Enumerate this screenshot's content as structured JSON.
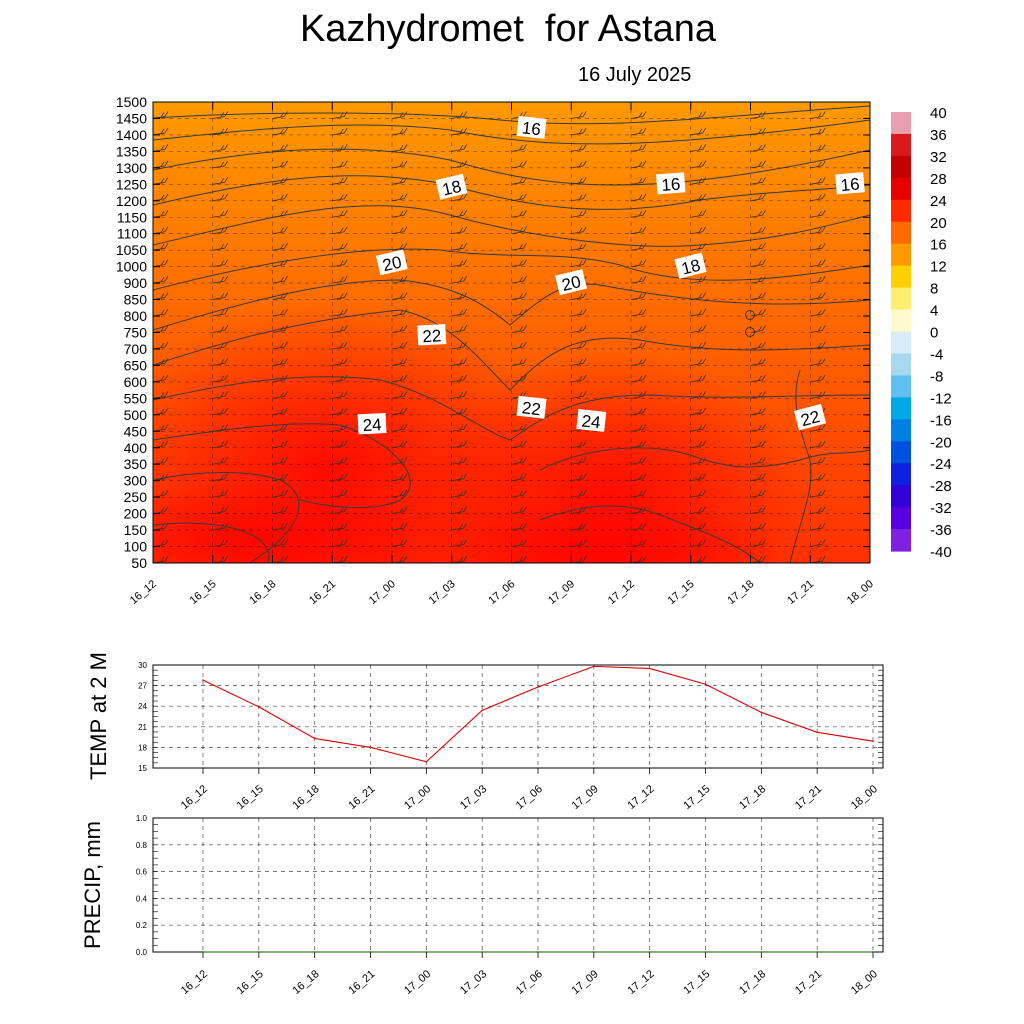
{
  "header": {
    "title": "Kazhydromet  for Astana",
    "date": "16 July 2025"
  },
  "colors": {
    "temp_line": "#e00000",
    "precip_line": "#006400",
    "contour": "#333333",
    "grid": "#000000"
  },
  "chart_data": [
    {
      "type": "heatmap",
      "title": "",
      "x_categories": [
        "16_12",
        "16_15",
        "16_18",
        "16_21",
        "17_00",
        "17_03",
        "17_06",
        "17_09",
        "17_12",
        "17_15",
        "17_18",
        "17_21",
        "18_00"
      ],
      "y_levels": [
        50,
        100,
        150,
        200,
        250,
        300,
        350,
        400,
        450,
        500,
        550,
        600,
        650,
        700,
        750,
        800,
        850,
        900,
        1000,
        1050,
        1100,
        1150,
        1200,
        1250,
        1300,
        1350,
        1400,
        1450,
        1500
      ],
      "colorbar": {
        "ticks": [
          40,
          36,
          32,
          28,
          24,
          20,
          16,
          12,
          8,
          4,
          0,
          -4,
          -8,
          -12,
          -16,
          -20,
          -24,
          -28,
          -32,
          -36,
          -40
        ],
        "range": [
          -40,
          40
        ]
      },
      "contour_labels": [
        {
          "value": "16",
          "x": "17_07",
          "y_level": 1420
        },
        {
          "value": "16",
          "x": "17_14",
          "y_level": 1250
        },
        {
          "value": "16",
          "x": "17_23",
          "y_level": 1250
        },
        {
          "value": "18",
          "x": "17_03",
          "y_level": 1240
        },
        {
          "value": "18",
          "x": "17_15",
          "y_level": 1000
        },
        {
          "value": "20",
          "x": "17_00",
          "y_level": 1010
        },
        {
          "value": "20",
          "x": "17_09",
          "y_level": 900
        },
        {
          "value": "22",
          "x": "17_02",
          "y_level": 740
        },
        {
          "value": "22",
          "x": "17_07",
          "y_level": 520
        },
        {
          "value": "22",
          "x": "17_21",
          "y_level": 490
        },
        {
          "value": "24",
          "x": "16_23",
          "y_level": 470
        },
        {
          "value": "24",
          "x": "17_10",
          "y_level": 480
        }
      ]
    },
    {
      "type": "line",
      "ylabel": "TEMP at 2 M",
      "categories": [
        "16_12",
        "16_15",
        "16_18",
        "16_21",
        "17_00",
        "17_03",
        "17_06",
        "17_09",
        "17_12",
        "17_15",
        "17_18",
        "17_21",
        "18_00"
      ],
      "yticks": [
        15,
        18,
        21,
        24,
        27,
        30
      ],
      "ylim": [
        15,
        30
      ],
      "series": [
        {
          "values": [
            27.8,
            23.9,
            19.3,
            18.0,
            15.9,
            23.4,
            26.8,
            29.8,
            29.5,
            27.2,
            23.1,
            20.2,
            18.9
          ]
        }
      ]
    },
    {
      "type": "line",
      "ylabel": "PRECIP, mm",
      "categories": [
        "16_12",
        "16_15",
        "16_18",
        "16_21",
        "17_00",
        "17_03",
        "17_06",
        "17_09",
        "17_12",
        "17_15",
        "17_18",
        "17_21",
        "18_00"
      ],
      "yticks": [
        "0.0",
        "0.2",
        "0.4",
        "0.6",
        "0.8",
        "1.0"
      ],
      "ylim": [
        0,
        1
      ],
      "series": [
        {
          "values": [
            0,
            0,
            0,
            0,
            0,
            0,
            0,
            0,
            0,
            0,
            0,
            0,
            0
          ]
        }
      ]
    }
  ]
}
